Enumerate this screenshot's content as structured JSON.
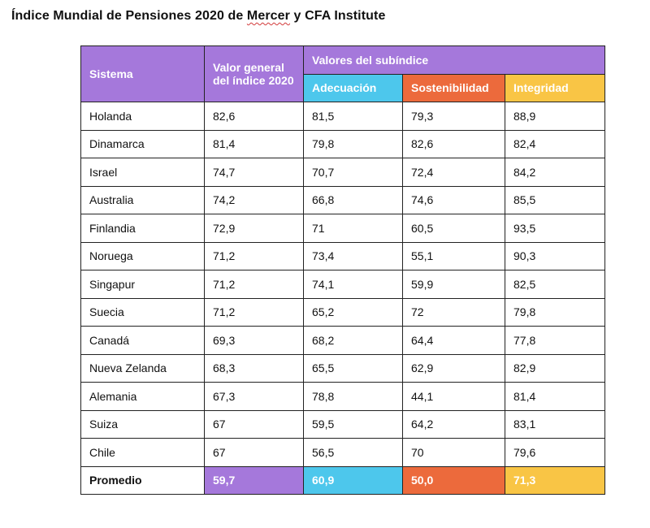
{
  "title": {
    "before": "Índice Mundial de Pensiones 2020 de ",
    "underlined": "Mercer",
    "after": " y CFA Institute"
  },
  "table": {
    "headers": {
      "sistema": "Sistema",
      "valor_general": "Valor general del índice 2020",
      "subindice_group": "Valores del subíndice",
      "adecuacion": "Adecuación",
      "sostenibilidad": "Sostenibilidad",
      "integridad": "Integridad"
    },
    "rows": [
      {
        "sistema": "Holanda",
        "valor": "82,6",
        "adecuacion": "81,5",
        "sostenibilidad": "79,3",
        "integridad": "88,9"
      },
      {
        "sistema": "Dinamarca",
        "valor": "81,4",
        "adecuacion": "79,8",
        "sostenibilidad": "82,6",
        "integridad": "82,4"
      },
      {
        "sistema": "Israel",
        "valor": "74,7",
        "adecuacion": "70,7",
        "sostenibilidad": "72,4",
        "integridad": "84,2"
      },
      {
        "sistema": "Australia",
        "valor": "74,2",
        "adecuacion": "66,8",
        "sostenibilidad": "74,6",
        "integridad": "85,5"
      },
      {
        "sistema": "Finlandia",
        "valor": "72,9",
        "adecuacion": "71",
        "sostenibilidad": "60,5",
        "integridad": "93,5"
      },
      {
        "sistema": "Noruega",
        "valor": "71,2",
        "adecuacion": "73,4",
        "sostenibilidad": "55,1",
        "integridad": "90,3"
      },
      {
        "sistema": "Singapur",
        "valor": "71,2",
        "adecuacion": "74,1",
        "sostenibilidad": "59,9",
        "integridad": "82,5"
      },
      {
        "sistema": "Suecia",
        "valor": "71,2",
        "adecuacion": "65,2",
        "sostenibilidad": "72",
        "integridad": "79,8"
      },
      {
        "sistema": "Canadá",
        "valor": "69,3",
        "adecuacion": "68,2",
        "sostenibilidad": "64,4",
        "integridad": "77,8"
      },
      {
        "sistema": "Nueva Zelanda",
        "valor": "68,3",
        "adecuacion": "65,5",
        "sostenibilidad": "62,9",
        "integridad": "82,9"
      },
      {
        "sistema": "Alemania",
        "valor": "67,3",
        "adecuacion": "78,8",
        "sostenibilidad": "44,1",
        "integridad": "81,4"
      },
      {
        "sistema": "Suiza",
        "valor": "67",
        "adecuacion": "59,5",
        "sostenibilidad": "64,2",
        "integridad": "83,1"
      },
      {
        "sistema": "Chile",
        "valor": "67",
        "adecuacion": "56,5",
        "sostenibilidad": "70",
        "integridad": "79,6"
      }
    ],
    "average": {
      "label": "Promedio",
      "valor": "59,7",
      "adecuacion": "60,9",
      "sostenibilidad": "50,0",
      "integridad": "71,3"
    }
  },
  "colors": {
    "purple": "#a578db",
    "cyan": "#4dc7ec",
    "orange": "#ec6a3c",
    "yellow": "#f9c545"
  }
}
